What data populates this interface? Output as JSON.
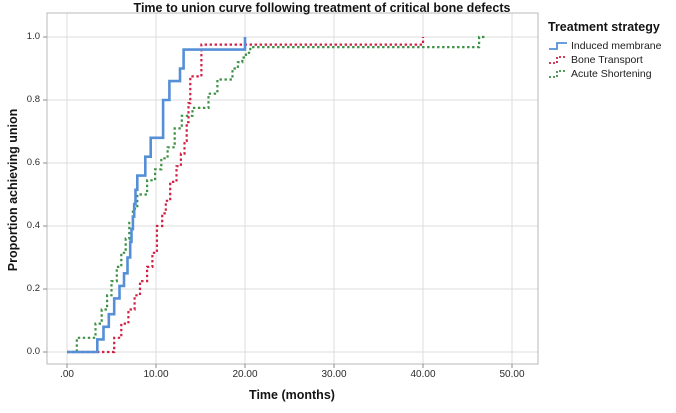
{
  "chart_data": {
    "type": "line",
    "subtype": "step-function-survival",
    "title": "Time to union curve following treatment of critical bone defects",
    "xlabel": "Time (months)",
    "ylabel": "Proportion achieving union",
    "xlim": [
      -2.2,
      52.9
    ],
    "ylim": [
      -0.04,
      1.08
    ],
    "grid": true,
    "x_ticks": [
      {
        "value": 0,
        "label": ".00"
      },
      {
        "value": 10,
        "label": "10.00"
      },
      {
        "value": 20,
        "label": "20.00"
      },
      {
        "value": 30,
        "label": "30.00"
      },
      {
        "value": 40,
        "label": "40.00"
      },
      {
        "value": 50,
        "label": "50.00"
      }
    ],
    "y_ticks": [
      {
        "value": 0.0,
        "label": "0.0"
      },
      {
        "value": 0.2,
        "label": "0.2"
      },
      {
        "value": 0.4,
        "label": "0.4"
      },
      {
        "value": 0.6,
        "label": "0.6"
      },
      {
        "value": 0.8,
        "label": "0.8"
      },
      {
        "value": 1.0,
        "label": "1.0"
      }
    ],
    "legend": {
      "title": "Treatment strategy",
      "position": "right"
    },
    "series": [
      {
        "name": "Induced membrane",
        "color": "#5590d7",
        "dash": "solid",
        "line_width": 2.6,
        "points": [
          [
            0,
            0
          ],
          [
            3.4,
            0.04
          ],
          [
            4.1,
            0.08
          ],
          [
            4.7,
            0.12
          ],
          [
            5.3,
            0.17
          ],
          [
            5.9,
            0.21
          ],
          [
            6.4,
            0.25
          ],
          [
            6.8,
            0.3
          ],
          [
            7.1,
            0.35
          ],
          [
            7.25,
            0.39
          ],
          [
            7.4,
            0.43
          ],
          [
            7.55,
            0.47
          ],
          [
            7.7,
            0.515
          ],
          [
            7.9,
            0.56
          ],
          [
            8.8,
            0.62
          ],
          [
            9.4,
            0.68
          ],
          [
            10.8,
            0.8
          ],
          [
            11.5,
            0.86
          ],
          [
            12.7,
            0.9
          ],
          [
            13.1,
            0.96
          ],
          [
            20,
            1.0
          ]
        ]
      },
      {
        "name": "Bone Transport",
        "color": "#d02045",
        "dash": "dotted",
        "line_width": 2.2,
        "points": [
          [
            0,
            0
          ],
          [
            5.3,
            0.045
          ],
          [
            6.1,
            0.09
          ],
          [
            6.9,
            0.135
          ],
          [
            7.6,
            0.18
          ],
          [
            8.2,
            0.225
          ],
          [
            9.0,
            0.27
          ],
          [
            9.6,
            0.315
          ],
          [
            10.1,
            0.4
          ],
          [
            10.7,
            0.44
          ],
          [
            11.1,
            0.48
          ],
          [
            11.6,
            0.54
          ],
          [
            12.3,
            0.59
          ],
          [
            12.8,
            0.63
          ],
          [
            13.2,
            0.67
          ],
          [
            13.45,
            0.73
          ],
          [
            13.65,
            0.79
          ],
          [
            13.85,
            0.875
          ],
          [
            15.1,
            0.976
          ],
          [
            40,
            1.0
          ]
        ]
      },
      {
        "name": "Acute Shortening",
        "color": "#3c9144",
        "dash": "dotted",
        "line_width": 2.2,
        "points": [
          [
            0,
            0
          ],
          [
            1.1,
            0.045
          ],
          [
            3.2,
            0.09
          ],
          [
            3.9,
            0.135
          ],
          [
            4.5,
            0.18
          ],
          [
            5.0,
            0.225
          ],
          [
            5.6,
            0.27
          ],
          [
            6.1,
            0.315
          ],
          [
            6.6,
            0.36
          ],
          [
            7.0,
            0.41
          ],
          [
            7.4,
            0.455
          ],
          [
            7.9,
            0.5
          ],
          [
            9.0,
            0.545
          ],
          [
            9.9,
            0.58
          ],
          [
            10.6,
            0.615
          ],
          [
            11.3,
            0.65
          ],
          [
            12.1,
            0.71
          ],
          [
            12.9,
            0.75
          ],
          [
            14.1,
            0.775
          ],
          [
            15.9,
            0.82
          ],
          [
            16.9,
            0.865
          ],
          [
            18.6,
            0.9
          ],
          [
            19.2,
            0.92
          ],
          [
            19.7,
            0.935
          ],
          [
            20.1,
            0.95
          ],
          [
            20.6,
            0.968
          ],
          [
            46.3,
            1.0
          ],
          [
            46.9,
            1.0
          ]
        ]
      }
    ]
  }
}
